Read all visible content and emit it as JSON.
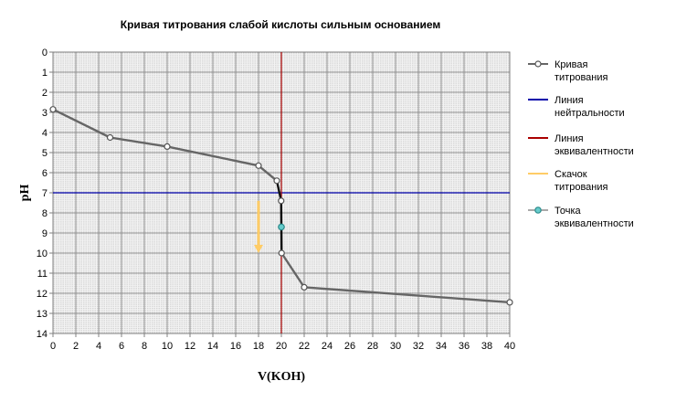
{
  "chart_data": {
    "type": "line",
    "title": "Кривая титрования слабой кислоты сильным основанием",
    "xlabel": "V(KOH)",
    "ylabel": "pH",
    "xlim": [
      0,
      40
    ],
    "ylim": [
      0,
      14
    ],
    "y_inverted": true,
    "grid": true,
    "legend_position": "right",
    "x_ticks": [
      0,
      2,
      4,
      6,
      8,
      10,
      12,
      14,
      16,
      18,
      20,
      22,
      24,
      26,
      28,
      30,
      32,
      34,
      36,
      38,
      40
    ],
    "y_ticks": [
      0,
      1,
      2,
      3,
      4,
      5,
      6,
      7,
      8,
      9,
      10,
      11,
      12,
      13,
      14
    ],
    "series": [
      {
        "name": "Кривая титрования",
        "color": "#666666",
        "x": [
          0,
          5,
          10,
          18,
          19.6,
          19.98,
          20,
          20.02,
          22,
          40
        ],
        "y": [
          2.85,
          4.25,
          4.7,
          5.65,
          6.4,
          7.4,
          8.7,
          10.0,
          11.7,
          12.45
        ]
      },
      {
        "name": "Линия нейтральности",
        "color": "#0000aa",
        "y_const": 7
      },
      {
        "name": "Линия эквивалентности",
        "color": "#aa0000",
        "x_const": 20
      },
      {
        "name": "Скачок титрования",
        "color": "#ffcc66",
        "x": [
          18,
          18
        ],
        "y": [
          7.4,
          10.0
        ]
      },
      {
        "name": "Точка эквивалентности",
        "color": "#66cccc",
        "x": [
          20
        ],
        "y": [
          8.7
        ]
      }
    ]
  }
}
